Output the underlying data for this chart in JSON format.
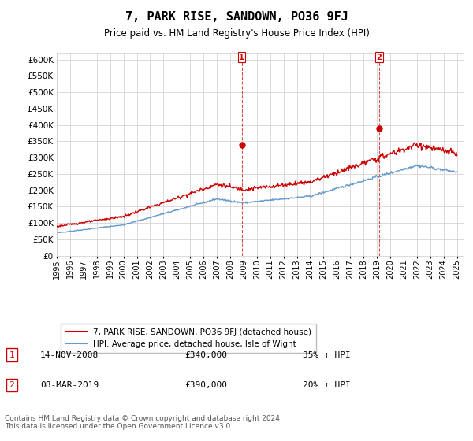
{
  "title": "7, PARK RISE, SANDOWN, PO36 9FJ",
  "subtitle": "Price paid vs. HM Land Registry's House Price Index (HPI)",
  "ylim": [
    0,
    620000
  ],
  "xlim_start": 1995.0,
  "xlim_end": 2025.5,
  "sale1_date": 2008.87,
  "sale1_price": 340000,
  "sale2_date": 2019.18,
  "sale2_price": 390000,
  "line_color_property": "#cc0000",
  "line_color_hpi": "#6699cc",
  "grid_color": "#cccccc",
  "bg_color": "#ffffff",
  "legend_label1": "7, PARK RISE, SANDOWN, PO36 9FJ (detached house)",
  "legend_label2": "HPI: Average price, detached house, Isle of Wight",
  "annotation1_label": "1",
  "annotation1_date": "14-NOV-2008",
  "annotation1_price": "£340,000",
  "annotation1_hpi": "35% ↑ HPI",
  "annotation2_label": "2",
  "annotation2_date": "08-MAR-2019",
  "annotation2_price": "£390,000",
  "annotation2_hpi": "20% ↑ HPI",
  "footer": "Contains HM Land Registry data © Crown copyright and database right 2024.\nThis data is licensed under the Open Government Licence v3.0."
}
